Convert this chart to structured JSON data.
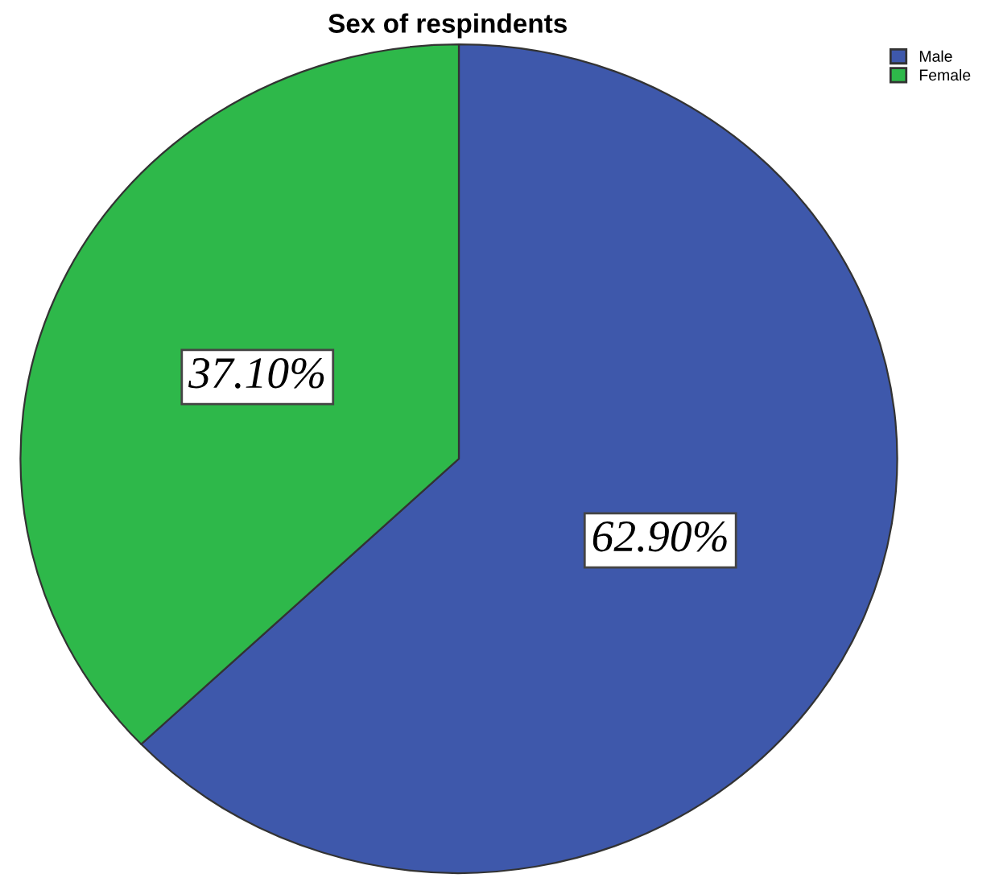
{
  "chart_data": {
    "type": "pie",
    "title": "Sex of respindents",
    "categories": [
      "Male",
      "Female"
    ],
    "values": [
      62.9,
      37.1
    ],
    "value_labels": [
      "62.90%",
      "37.10%"
    ],
    "colors": [
      "#3e58ab",
      "#2eb84a"
    ],
    "legend": "top right"
  }
}
